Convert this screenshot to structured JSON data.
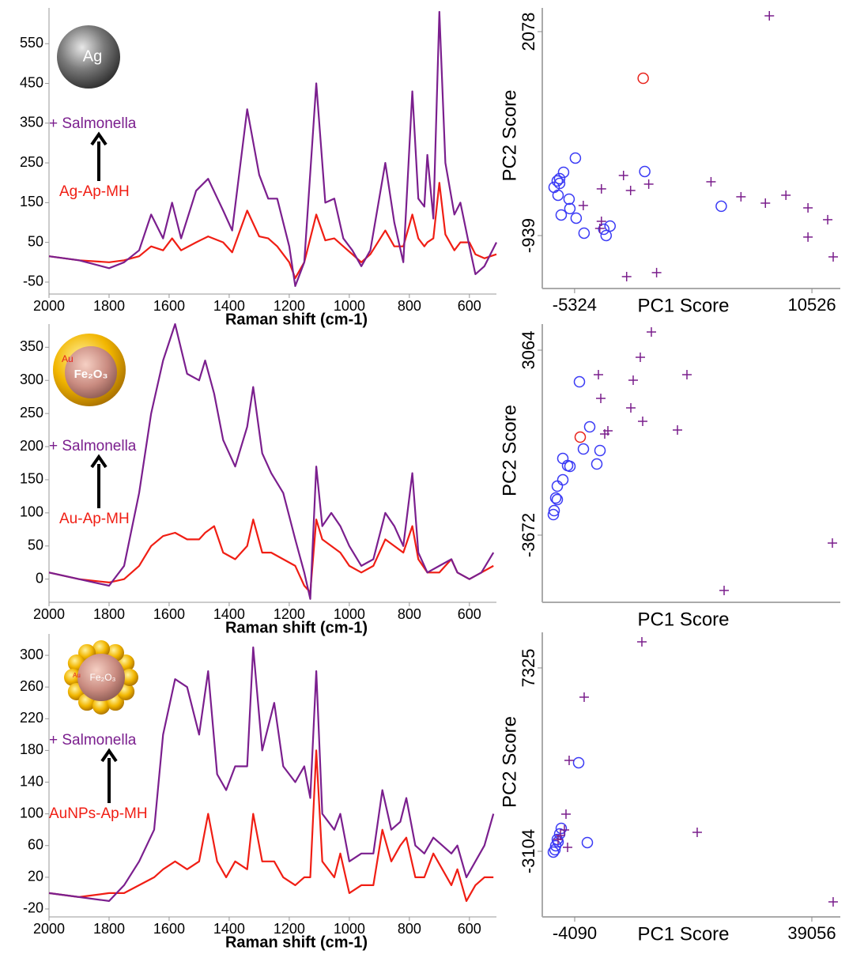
{
  "chart_data": [
    {
      "type": "line",
      "xlabel": "Raman shift (cm-1)",
      "icon_labels": [
        "Ag"
      ],
      "x": [
        2000,
        1900,
        1800,
        1750,
        1700,
        1660,
        1620,
        1590,
        1560,
        1510,
        1470,
        1420,
        1390,
        1340,
        1300,
        1270,
        1240,
        1200,
        1180,
        1150,
        1110,
        1080,
        1050,
        1020,
        990,
        960,
        930,
        880,
        850,
        820,
        790,
        770,
        750,
        740,
        720,
        700,
        680,
        650,
        630,
        600,
        580,
        550,
        510
      ],
      "xlim": [
        2000,
        510
      ],
      "xticks": [
        2000,
        1800,
        1600,
        1400,
        1200,
        1000,
        800,
        600
      ],
      "ylim": [
        -80,
        640
      ],
      "yticks": [
        -50,
        50,
        150,
        250,
        350,
        450,
        550
      ],
      "series": [
        {
          "name": "+ Salmonella",
          "color": "#7b1f8e",
          "values": [
            15,
            5,
            -15,
            0,
            30,
            120,
            60,
            150,
            60,
            180,
            210,
            130,
            80,
            385,
            220,
            160,
            160,
            40,
            -60,
            0,
            450,
            150,
            160,
            60,
            30,
            -10,
            30,
            250,
            100,
            0,
            430,
            160,
            140,
            270,
            110,
            630,
            250,
            120,
            150,
            40,
            -30,
            -10,
            50
          ]
        },
        {
          "name": "Ag-Ap-MH",
          "color": "#f01e14",
          "values": [
            15,
            5,
            0,
            5,
            15,
            40,
            30,
            60,
            30,
            50,
            65,
            50,
            25,
            130,
            65,
            60,
            40,
            0,
            -40,
            0,
            120,
            55,
            60,
            40,
            20,
            0,
            20,
            80,
            40,
            40,
            120,
            60,
            40,
            50,
            60,
            200,
            70,
            30,
            50,
            50,
            20,
            10,
            20
          ]
        }
      ]
    },
    {
      "type": "line",
      "xlabel": "Raman shift (cm-1)",
      "icon_labels": [
        "Au",
        "Fe₂O₃"
      ],
      "x": [
        2000,
        1900,
        1800,
        1750,
        1700,
        1660,
        1620,
        1580,
        1540,
        1500,
        1480,
        1450,
        1420,
        1380,
        1340,
        1320,
        1290,
        1260,
        1220,
        1180,
        1150,
        1130,
        1110,
        1090,
        1060,
        1030,
        1000,
        960,
        920,
        880,
        850,
        820,
        790,
        770,
        740,
        700,
        660,
        640,
        600,
        560,
        520
      ],
      "xlim": [
        2000,
        510
      ],
      "xticks": [
        2000,
        1800,
        1600,
        1400,
        1200,
        1000,
        800,
        600
      ],
      "ylim": [
        -35,
        385
      ],
      "yticks": [
        0,
        50,
        100,
        150,
        200,
        250,
        300,
        350
      ],
      "series": [
        {
          "name": "+ Salmonella",
          "color": "#7b1f8e",
          "values": [
            10,
            0,
            -10,
            20,
            130,
            250,
            330,
            385,
            310,
            300,
            330,
            280,
            210,
            170,
            230,
            290,
            190,
            160,
            130,
            60,
            10,
            -30,
            170,
            80,
            100,
            80,
            50,
            20,
            30,
            100,
            80,
            50,
            160,
            40,
            10,
            20,
            30,
            10,
            0,
            10,
            40
          ]
        },
        {
          "name": "Au-Ap-MH",
          "color": "#f01e14",
          "values": [
            10,
            0,
            -5,
            0,
            20,
            50,
            65,
            70,
            60,
            60,
            70,
            80,
            40,
            30,
            50,
            90,
            40,
            40,
            30,
            20,
            -10,
            -20,
            90,
            60,
            50,
            40,
            20,
            10,
            20,
            60,
            50,
            40,
            80,
            30,
            10,
            10,
            30,
            10,
            0,
            10,
            20
          ]
        }
      ]
    },
    {
      "type": "line",
      "xlabel": "Raman shift (cm-1)",
      "icon_labels": [
        "Au",
        "Fe₂O₃"
      ],
      "x": [
        2000,
        1900,
        1800,
        1750,
        1700,
        1650,
        1620,
        1580,
        1540,
        1500,
        1470,
        1440,
        1410,
        1380,
        1340,
        1320,
        1290,
        1250,
        1220,
        1180,
        1150,
        1130,
        1110,
        1090,
        1050,
        1030,
        1000,
        960,
        920,
        890,
        860,
        830,
        810,
        780,
        750,
        720,
        690,
        660,
        640,
        610,
        580,
        550,
        520
      ],
      "xlim": [
        2000,
        510
      ],
      "xticks": [
        2000,
        1800,
        1600,
        1400,
        1200,
        1000,
        800,
        600
      ],
      "ylim": [
        -30,
        327
      ],
      "yticks": [
        -20,
        20,
        60,
        100,
        140,
        180,
        220,
        260,
        300
      ],
      "series": [
        {
          "name": "+ Salmonella",
          "color": "#7b1f8e",
          "values": [
            0,
            -5,
            -10,
            10,
            40,
            80,
            200,
            270,
            260,
            200,
            280,
            150,
            130,
            160,
            160,
            310,
            180,
            240,
            160,
            140,
            160,
            120,
            280,
            100,
            80,
            100,
            40,
            50,
            50,
            130,
            80,
            90,
            120,
            60,
            50,
            70,
            60,
            50,
            60,
            20,
            40,
            60,
            100
          ]
        },
        {
          "name": "AuNPs-Ap-MH",
          "color": "#f01e14",
          "values": [
            0,
            -5,
            0,
            0,
            10,
            20,
            30,
            40,
            30,
            40,
            100,
            40,
            20,
            40,
            30,
            100,
            40,
            40,
            20,
            10,
            20,
            20,
            180,
            40,
            20,
            50,
            0,
            10,
            10,
            80,
            40,
            60,
            70,
            20,
            20,
            50,
            30,
            10,
            30,
            -10,
            10,
            20,
            20
          ]
        }
      ]
    },
    {
      "type": "scatter",
      "xlabel": "PC1 Score",
      "ylabel": "PC2 Score",
      "xlim": [
        -7483,
        12422
      ],
      "ylim": [
        -1722,
        2429
      ],
      "xticks": [
        -5324,
        10526
      ],
      "yticks": [
        -939,
        2078
      ],
      "series": [
        {
          "marker": "o",
          "color": "#3a3af5",
          "x": [
            -6693,
            -6430,
            -6325,
            -6325,
            -6061,
            -6219,
            -5693,
            -5640,
            -5271,
            -5219,
            -4692,
            -3376,
            -3219,
            -2956,
            -639,
            4471,
            -6483
          ],
          "values": [
            -225,
            -342,
            -167,
            -96,
            -3,
            -634,
            -400,
            -540,
            208,
            -681,
            -903,
            -845,
            -938,
            -798,
            9,
            -505,
            -131
          ]
        },
        {
          "marker": "o",
          "color": "#e8221b",
          "x": [
            -743
          ],
          "values": [
            1388
          ]
        },
        {
          "marker": "+",
          "color": "#7a1e8c",
          "x": [
            7683,
            -2059,
            -3534,
            -1585,
            -374,
            3786,
            5787,
            7420,
            8789,
            10263,
            11580,
            10263,
            11948,
            -1849,
            152,
            -4745,
            -3534,
            -3639
          ],
          "values": [
            2312,
            -50,
            -248,
            -272,
            -178,
            -143,
            -365,
            -459,
            -342,
            -529,
            -704,
            -961,
            -1254,
            -1546,
            -1487,
            -494,
            -728,
            -833
          ]
        }
      ]
    },
    {
      "type": "scatter",
      "xlabel": "PC1 Score",
      "ylabel": "PC2 Score",
      "xlim": [
        -5000,
        15000
      ],
      "ylim": [
        -6119,
        4014
      ],
      "xticks": [],
      "yticks": [
        -3672,
        3064
      ],
      "series": [
        {
          "marker": "o",
          "color": "#3a3af5",
          "x": [
            -2507,
            -1817,
            -2241,
            -1127,
            -1340,
            -3621,
            -3302,
            -3143,
            -3621,
            -3992,
            -4098,
            -3992,
            -4204,
            -4257
          ],
          "values": [
            1912,
            271,
            -535,
            -592,
            -1082,
            -880,
            -1139,
            -1168,
            -1658,
            -1888,
            -2320,
            -2377,
            -2780,
            -2924
          ]
        },
        {
          "marker": "o",
          "color": "#e8221b",
          "x": [
            -2454
          ],
          "values": [
            -103
          ]
        },
        {
          "marker": "+",
          "color": "#7a1e8c",
          "x": [
            2321,
            1578,
            1101,
            -1233,
            4708,
            -1074,
            942,
            1737,
            4072,
            -597,
            -809,
            14469,
            7202
          ],
          "values": [
            3726,
            2805,
            1970,
            2171,
            2171,
            1308,
            962,
            473,
            156,
            127,
            11,
            -3961,
            -5688
          ]
        }
      ]
    },
    {
      "type": "scatter",
      "xlabel": "PC1 Score",
      "ylabel": "PC2 Score",
      "xlim": [
        -9986,
        44233
      ],
      "ylim": [
        -6835,
        9348
      ],
      "xticks": [
        -4090,
        39056
      ],
      "yticks": [
        -3104,
        7325
      ],
      "series": [
        {
          "marker": "o",
          "color": "#3a3af5",
          "x": [
            -3371,
            -6535,
            -6822,
            -7253,
            -7541,
            -7973,
            -7685,
            -1789,
            -7110
          ],
          "values": [
            1931,
            -1800,
            -2115,
            -2429,
            -2789,
            -3148,
            -3014,
            -2609,
            -2564
          ]
        },
        {
          "marker": "+",
          "color": "#7a1e8c",
          "x": [
            8133,
            -2364,
            -5097,
            -5672,
            -5384,
            18199,
            42933,
            -5959,
            -6678,
            -7110
          ],
          "values": [
            8808,
            5662,
            2066,
            -991,
            -2879,
            -2025,
            -5980,
            -1890,
            -2204,
            -2429
          ]
        }
      ]
    }
  ]
}
